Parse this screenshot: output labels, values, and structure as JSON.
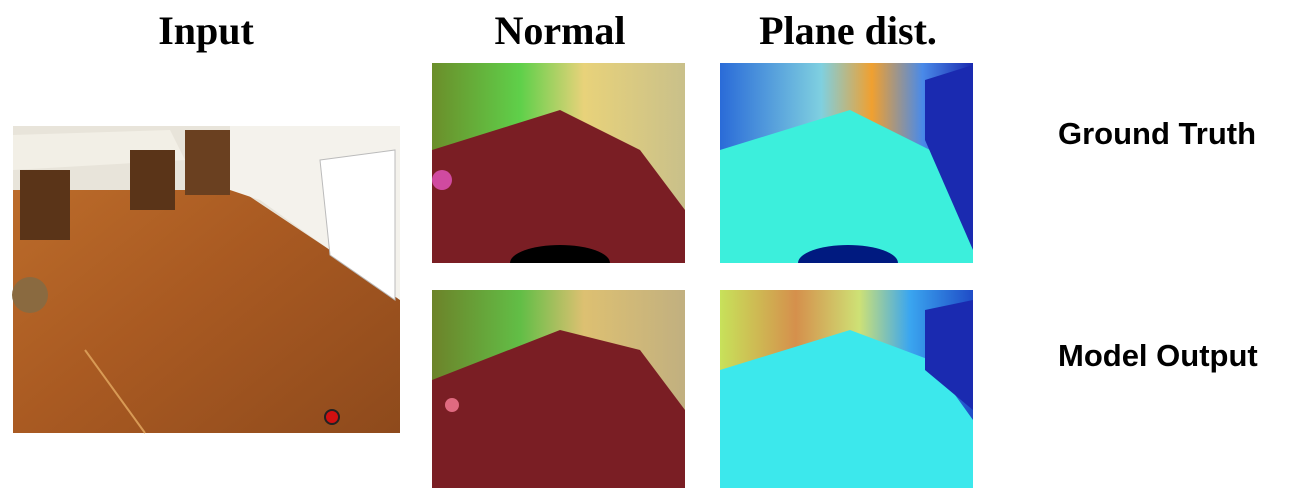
{
  "headers": [
    "Input",
    "Normal",
    "Plane dist."
  ],
  "rows": [
    "Ground Truth",
    "Model Output"
  ]
}
